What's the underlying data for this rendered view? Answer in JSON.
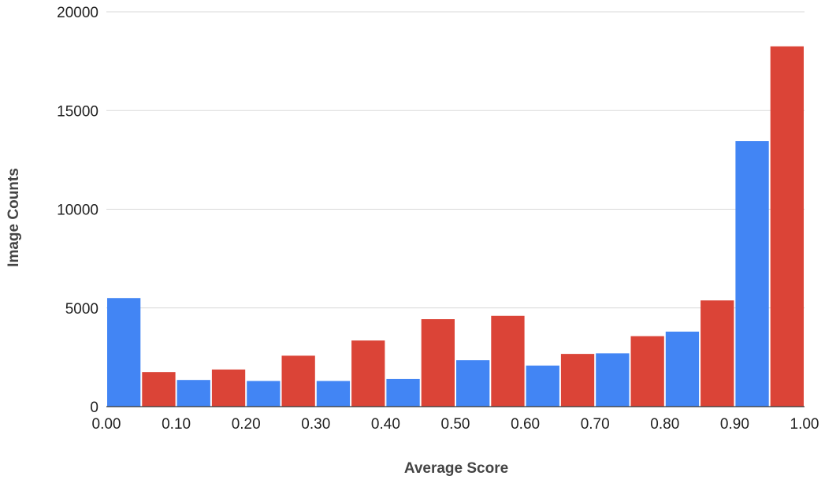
{
  "chart_data": {
    "type": "bar",
    "title": "",
    "xlabel": "Average Score",
    "ylabel": "Image Counts",
    "xlim": [
      0.0,
      1.0
    ],
    "ylim": [
      0,
      20000
    ],
    "grid": true,
    "legend": "none",
    "bin_width": 0.05,
    "x_ticks": [
      0.0,
      0.1,
      0.2,
      0.3,
      0.4,
      0.5,
      0.6,
      0.7,
      0.8,
      0.9,
      1.0
    ],
    "x_tick_labels": [
      "0.00",
      "0.10",
      "0.20",
      "0.30",
      "0.40",
      "0.50",
      "0.60",
      "0.70",
      "0.80",
      "0.90",
      "1.00"
    ],
    "y_ticks": [
      0,
      5000,
      10000,
      15000,
      20000
    ],
    "y_tick_labels": [
      "0",
      "5000",
      "10000",
      "15000",
      "20000"
    ],
    "bars": [
      {
        "x_start": 0.0,
        "x_end": 0.05,
        "value": 5500,
        "color": "#4285f4"
      },
      {
        "x_start": 0.05,
        "x_end": 0.1,
        "value": 1750,
        "color": "#db4437"
      },
      {
        "x_start": 0.1,
        "x_end": 0.15,
        "value": 1350,
        "color": "#4285f4"
      },
      {
        "x_start": 0.15,
        "x_end": 0.2,
        "value": 1880,
        "color": "#db4437"
      },
      {
        "x_start": 0.2,
        "x_end": 0.25,
        "value": 1300,
        "color": "#4285f4"
      },
      {
        "x_start": 0.25,
        "x_end": 0.3,
        "value": 2580,
        "color": "#db4437"
      },
      {
        "x_start": 0.3,
        "x_end": 0.35,
        "value": 1300,
        "color": "#4285f4"
      },
      {
        "x_start": 0.35,
        "x_end": 0.4,
        "value": 3350,
        "color": "#db4437"
      },
      {
        "x_start": 0.4,
        "x_end": 0.45,
        "value": 1400,
        "color": "#4285f4"
      },
      {
        "x_start": 0.45,
        "x_end": 0.5,
        "value": 4430,
        "color": "#db4437"
      },
      {
        "x_start": 0.5,
        "x_end": 0.55,
        "value": 2350,
        "color": "#4285f4"
      },
      {
        "x_start": 0.55,
        "x_end": 0.6,
        "value": 4600,
        "color": "#db4437"
      },
      {
        "x_start": 0.6,
        "x_end": 0.65,
        "value": 2080,
        "color": "#4285f4"
      },
      {
        "x_start": 0.65,
        "x_end": 0.7,
        "value": 2670,
        "color": "#db4437"
      },
      {
        "x_start": 0.7,
        "x_end": 0.75,
        "value": 2700,
        "color": "#4285f4"
      },
      {
        "x_start": 0.75,
        "x_end": 0.8,
        "value": 3570,
        "color": "#db4437"
      },
      {
        "x_start": 0.8,
        "x_end": 0.85,
        "value": 3800,
        "color": "#4285f4"
      },
      {
        "x_start": 0.85,
        "x_end": 0.9,
        "value": 5380,
        "color": "#db4437"
      },
      {
        "x_start": 0.9,
        "x_end": 0.95,
        "value": 13450,
        "color": "#4285f4"
      },
      {
        "x_start": 0.95,
        "x_end": 1.0,
        "value": 18250,
        "color": "#db4437"
      }
    ]
  }
}
